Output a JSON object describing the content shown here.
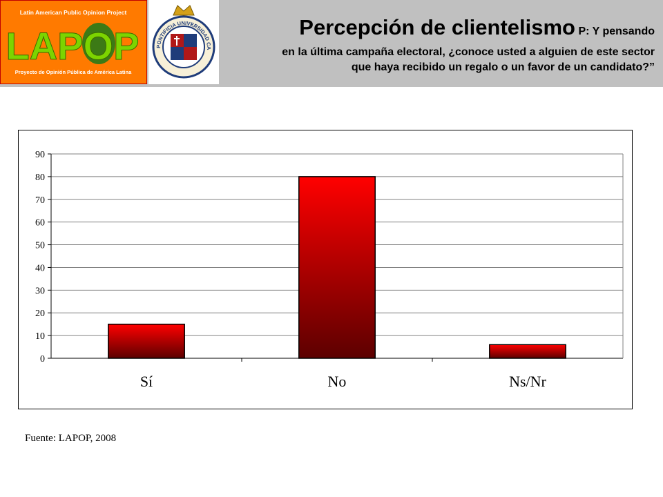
{
  "header": {
    "lapop_logo": {
      "top_text": "Latin American Public Opinion Project",
      "wordmark": "LAPOP",
      "bottom_text": "Proyecto de Opinión Pública de América Latina"
    },
    "seal": {
      "ring_text": "PONTIFICIA UNIVERSIDAD CATOLICA DE CHILE"
    },
    "title": "Percepción de clientelismo",
    "question_start": "P: Y pensando",
    "question_line2": "en la última campaña electoral, ¿conoce usted a alguien de este sector",
    "question_line3": "que haya recibido un regalo o un favor de un candidato?”"
  },
  "chart_data": {
    "type": "bar",
    "categories": [
      "Sí",
      "No",
      "Ns/Nr"
    ],
    "values": [
      15,
      80,
      6
    ],
    "ylim": [
      0,
      90
    ],
    "yticks": [
      "0",
      "10",
      "20",
      "30",
      "40",
      "50",
      "60",
      "70",
      "80",
      "90"
    ],
    "grid": true,
    "legend": "none",
    "colors": {
      "bar_top": "#ff0000",
      "bar_bottom": "#5c0000",
      "grid": "#808080"
    }
  },
  "footer": {
    "source": "Fuente: LAPOP, 2008"
  }
}
